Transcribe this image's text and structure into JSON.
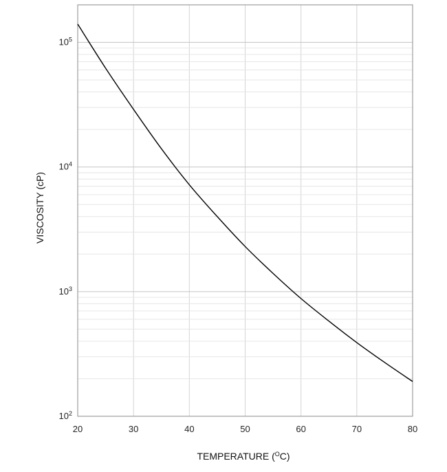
{
  "chart_data": {
    "type": "line",
    "title": "",
    "xlabel": "TEMPERATURE (",
    "xlabel_unit_sup": "O",
    "xlabel_unit_rest": "C)",
    "ylabel": "VISCOSITY (cP)",
    "xlim": [
      20,
      80
    ],
    "ylim": [
      100,
      200000
    ],
    "yscale": "log",
    "grid": true,
    "x_ticks": [
      "20",
      "30",
      "40",
      "50",
      "60",
      "70",
      "80"
    ],
    "y_ticks": [
      {
        "base": "10",
        "exp": "2",
        "value": 100
      },
      {
        "base": "10",
        "exp": "3",
        "value": 1000
      },
      {
        "base": "10",
        "exp": "4",
        "value": 10000
      },
      {
        "base": "10",
        "exp": "5",
        "value": 100000
      }
    ],
    "series": [
      {
        "color": "#000000",
        "x": [
          20,
          25,
          30,
          35,
          40,
          45,
          50,
          55,
          60,
          65,
          70,
          75,
          80
        ],
        "y": [
          140000,
          62000,
          29000,
          14000,
          7200,
          4000,
          2300,
          1400,
          880,
          580,
          390,
          270,
          190
        ]
      }
    ]
  }
}
